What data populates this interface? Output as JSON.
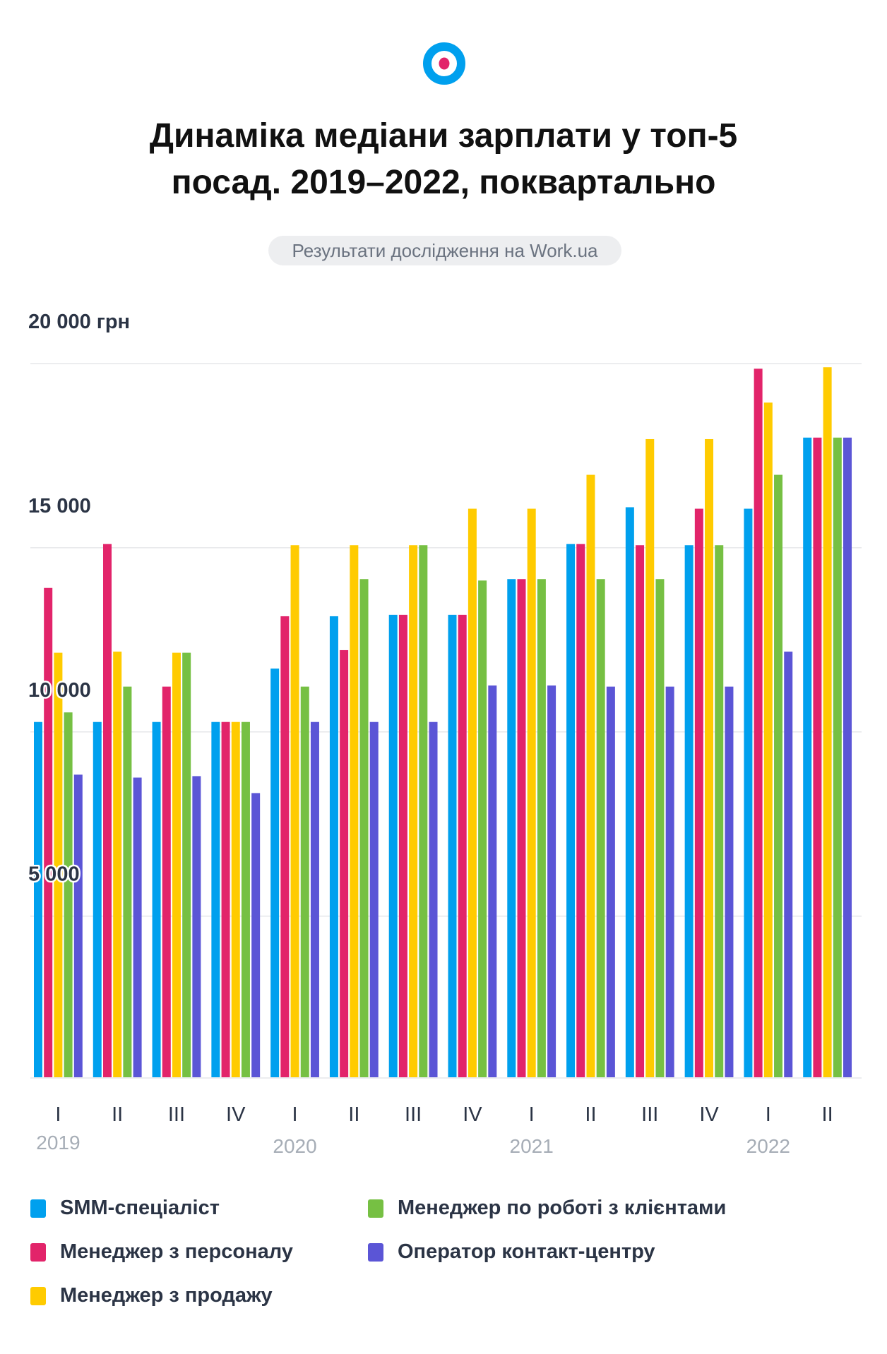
{
  "header": {
    "logo_colors": {
      "ring": "#00A0EE",
      "dot": "#E2246A"
    },
    "title_line1": "Динаміка медіани зарплати у топ-5",
    "title_line2": "посад. 2019–2022, поквартально",
    "source_badge": "Результати дослідження на Work.ua"
  },
  "chart_data": {
    "type": "bar",
    "title": "Динаміка медіани зарплати у топ-5 посад. 2019–2022, поквартально",
    "xlabel": "",
    "ylabel": "",
    "ylim": [
      625,
      20000
    ],
    "yticks": [
      5000,
      10000,
      15000,
      20000
    ],
    "ytick_labels": [
      "5 000",
      "10 000",
      "15 000",
      "20 000 грн"
    ],
    "grid": true,
    "legend_position": "bottom",
    "categories": [
      "I",
      "II",
      "III",
      "IV",
      "I",
      "II",
      "III",
      "IV",
      "I",
      "II",
      "III",
      "IV",
      "I",
      "II"
    ],
    "years": [
      {
        "label": "2019",
        "start_index": 0
      },
      {
        "label": "2020",
        "start_index": 4
      },
      {
        "label": "2021",
        "start_index": 8
      },
      {
        "label": "2022",
        "start_index": 12
      }
    ],
    "series": [
      {
        "name": "SMM-спеціаліст",
        "color": "#00A0EE",
        "values": [
          10270,
          10270,
          10270,
          10270,
          11720,
          13140,
          13180,
          13180,
          14150,
          15100,
          16100,
          15070,
          16060,
          17990
        ]
      },
      {
        "name": "Менеджер з персоналу",
        "color": "#E2246A",
        "values": [
          13910,
          15100,
          11230,
          10270,
          13140,
          12220,
          13180,
          13180,
          14150,
          15100,
          15070,
          16060,
          19860,
          17990
        ]
      },
      {
        "name": "Менеджер з продажу",
        "color": "#FFCB00",
        "values": [
          12150,
          12180,
          12150,
          10270,
          15070,
          15070,
          15070,
          16060,
          16060,
          16980,
          17950,
          17950,
          18940,
          19900
        ]
      },
      {
        "name": "Менеджер по роботі з клієнтами",
        "color": "#76C043",
        "values": [
          10530,
          11230,
          12150,
          10270,
          11230,
          14150,
          15070,
          14110,
          14150,
          14150,
          14150,
          15070,
          16980,
          17990
        ]
      },
      {
        "name": "Оператор контакт-центру",
        "color": "#5B55D6",
        "values": [
          8840,
          8760,
          8800,
          8340,
          10270,
          10270,
          10270,
          11260,
          11260,
          11230,
          11230,
          11230,
          12180,
          17990
        ]
      }
    ]
  }
}
